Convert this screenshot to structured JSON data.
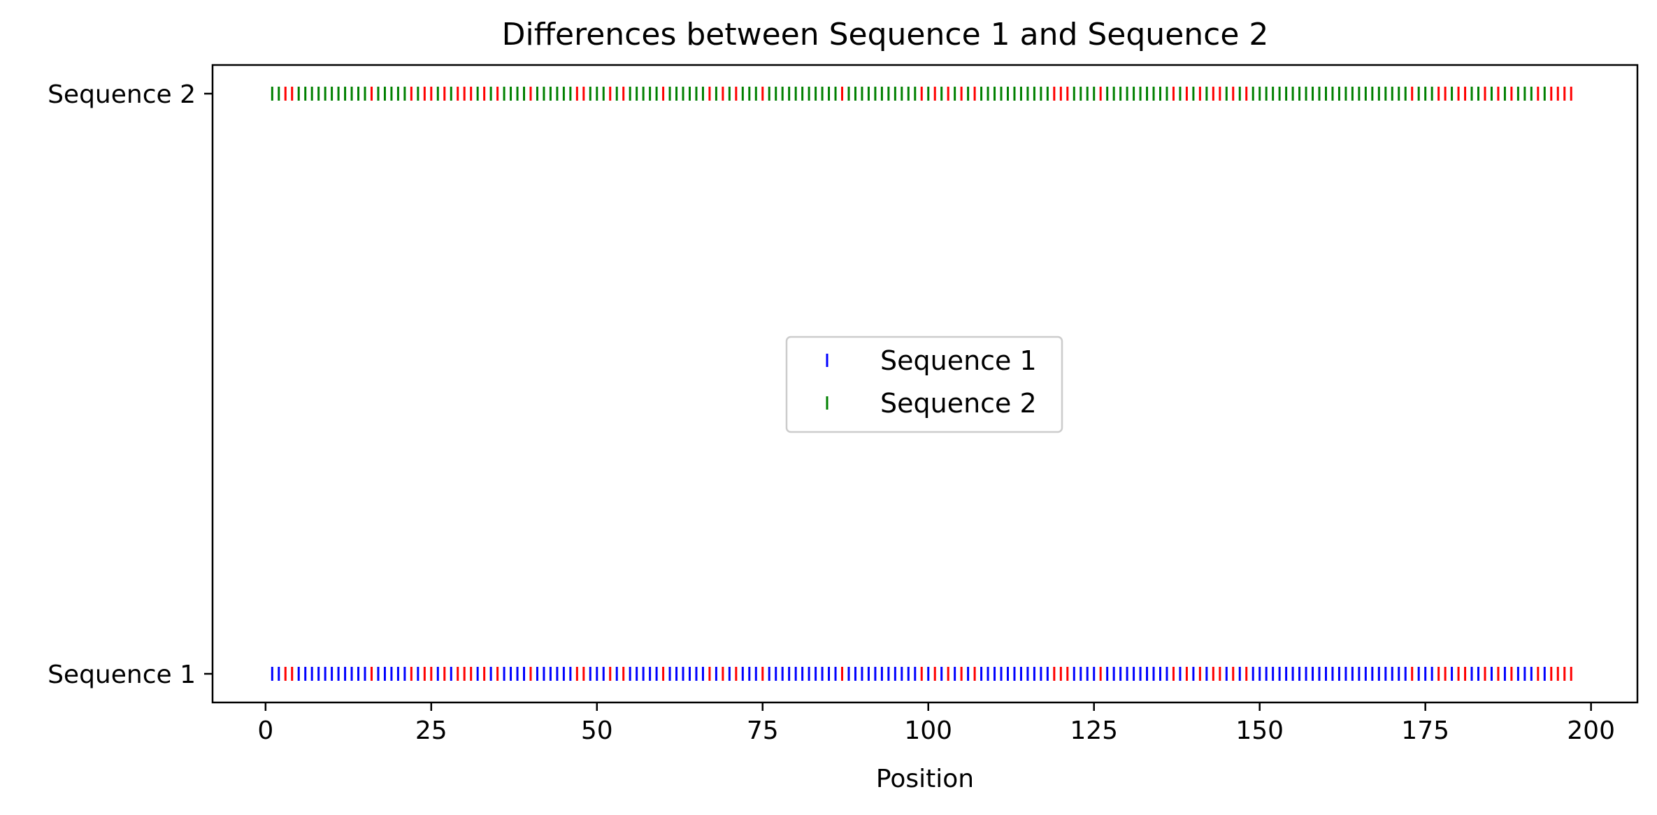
{
  "chart_data": {
    "type": "scatter",
    "marker": "vertical-tick",
    "title": "Differences between Sequence 1 and Sequence 2",
    "xlabel": "Position",
    "ylabel": "",
    "xlim": [
      -8,
      207
    ],
    "x_ticks": [
      0,
      25,
      50,
      75,
      100,
      125,
      150,
      175,
      200
    ],
    "y_categories": [
      "Sequence 1",
      "Sequence 2"
    ],
    "positions_start": 1,
    "positions_end": 197,
    "difference_color": "#ff0000",
    "difference_positions": [
      3,
      4,
      16,
      22,
      24,
      25,
      27,
      29,
      30,
      31,
      33,
      35,
      40,
      47,
      48,
      52,
      54,
      60,
      67,
      69,
      71,
      75,
      87,
      99,
      101,
      103,
      105,
      107,
      119,
      120,
      121,
      126,
      137,
      139,
      141,
      143,
      144,
      146,
      148,
      173,
      177,
      178,
      180,
      181,
      184,
      186,
      188,
      192,
      194,
      195,
      196,
      197
    ],
    "series": [
      {
        "name": "Sequence 1",
        "y": "Sequence 1",
        "color": "#0000ff"
      },
      {
        "name": "Sequence 2",
        "y": "Sequence 2",
        "color": "#008000"
      }
    ],
    "legend": {
      "position": "center"
    },
    "grid": false
  }
}
